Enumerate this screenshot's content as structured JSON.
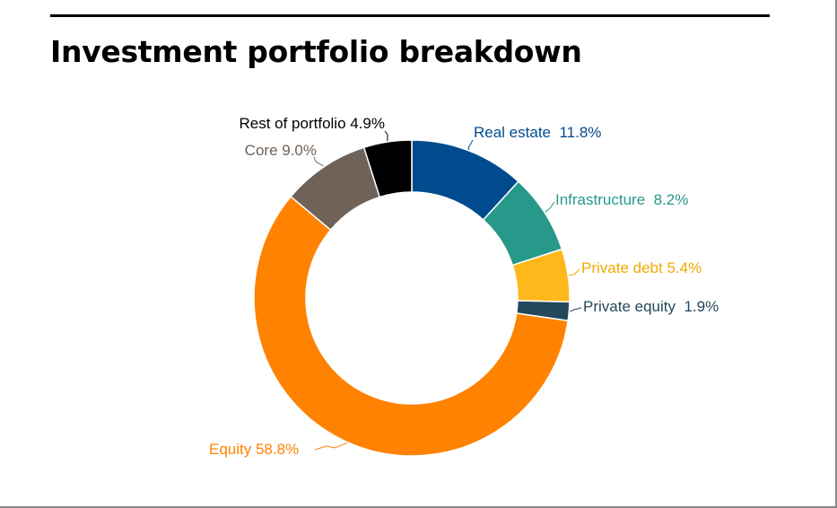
{
  "title": "Investment portfolio breakdown",
  "chart_data": {
    "type": "pie",
    "donut": true,
    "title": "Investment portfolio breakdown",
    "start_angle_deg": 0,
    "direction": "clockwise",
    "slices": [
      {
        "name": "Real estate",
        "value": 11.8,
        "label": "Real estate  11.8%",
        "color": "#004b8d",
        "label_color": "#004b8d"
      },
      {
        "name": "Infrastructure",
        "value": 8.2,
        "label": "Infrastructure  8.2%",
        "color": "#26998a",
        "label_color": "#26998a"
      },
      {
        "name": "Private debt",
        "value": 5.4,
        "label": "Private debt 5.4%",
        "color": "#ffb81c",
        "label_color": "#f2a900"
      },
      {
        "name": "Private equity",
        "value": 1.9,
        "label": "Private equity  1.9%",
        "color": "#24485b",
        "label_color": "#24485b"
      },
      {
        "name": "Equity",
        "value": 58.8,
        "label": "Equity 58.8%",
        "color": "#ff8200",
        "label_color": "#ff8200"
      },
      {
        "name": "Core",
        "value": 9.0,
        "label": "Core 9.0%",
        "color": "#6e6259",
        "label_color": "#6e6259"
      },
      {
        "name": "Rest of portfolio",
        "value": 4.9,
        "label": "Rest of portfolio 4.9%",
        "color": "#000000",
        "label_color": "#000000"
      }
    ]
  }
}
